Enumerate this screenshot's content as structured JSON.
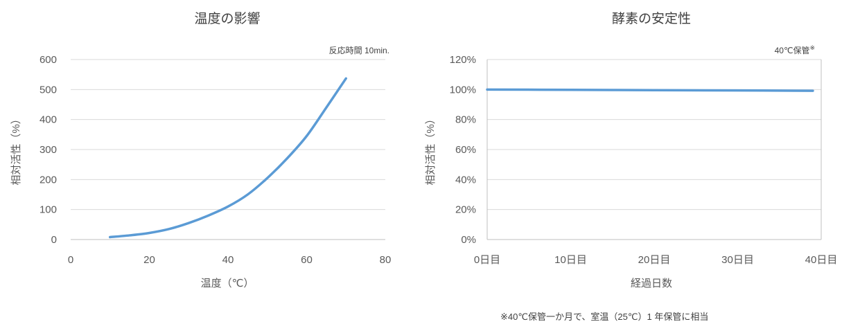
{
  "chart_data": [
    {
      "type": "line",
      "title": "温度の影響",
      "note": "反応時間 10min.",
      "xlabel": "温度（℃）",
      "ylabel": "相対活性（%）",
      "xlim": [
        0,
        80
      ],
      "ylim": [
        0,
        600
      ],
      "xticks": [
        "0",
        "20",
        "40",
        "60",
        "80"
      ],
      "yticks": [
        "0",
        "100",
        "200",
        "300",
        "400",
        "500",
        "600"
      ],
      "grid": true,
      "series": [
        {
          "x": [
            10,
            15,
            20,
            25,
            30,
            35,
            40,
            45,
            50,
            55,
            60,
            65,
            70
          ],
          "y": [
            8,
            14,
            22,
            35,
            55,
            80,
            110,
            150,
            205,
            270,
            345,
            440,
            537
          ]
        }
      ]
    },
    {
      "type": "line",
      "title": "酵素の安定性",
      "note": "40℃保管",
      "note_mark": "※",
      "xlabel": "経過日数",
      "ylabel": "相対活性（%）",
      "xlim": [
        0,
        40
      ],
      "ylim": [
        0,
        120
      ],
      "xticks": [
        "0日目",
        "10日目",
        "20日目",
        "30日目",
        "40日目"
      ],
      "yticks": [
        "0%",
        "20%",
        "40%",
        "60%",
        "80%",
        "100%",
        "120%"
      ],
      "grid": true,
      "series": [
        {
          "x": [
            0,
            10,
            20,
            30,
            39
          ],
          "y": [
            100,
            99.8,
            99.6,
            99.4,
            99.2
          ]
        }
      ]
    }
  ],
  "footnote": "※40℃保管一か月で、室温（25℃）1 年保管に相当",
  "colors": {
    "series": "#5b9bd5",
    "grid": "#d9d9d9"
  }
}
